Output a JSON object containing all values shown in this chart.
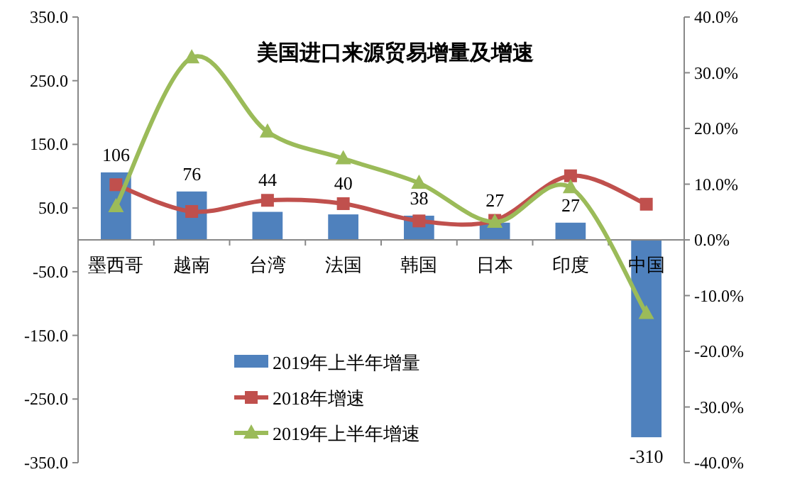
{
  "chart_data": {
    "type": "bar",
    "title": "美国进口来源贸易增量及增速",
    "categories": [
      "墨西哥",
      "越南",
      "台湾",
      "法国",
      "韩国",
      "日本",
      "印度",
      "中国"
    ],
    "series": [
      {
        "name": "2019年上半年增量",
        "color": "#4f81bd",
        "values": [
          106,
          76,
          44,
          40,
          38,
          27,
          27,
          -310
        ],
        "value_labels": [
          "106",
          "76",
          "44",
          "40",
          "38",
          "27",
          "27",
          "-310"
        ]
      },
      {
        "name": "2018年增速",
        "type": "line",
        "axis": "y2",
        "color": "#c0504d",
        "marker": "square",
        "values": [
          9.9,
          5.1,
          7.1,
          6.5,
          3.4,
          3.5,
          11.5,
          6.4
        ]
      },
      {
        "name": "2019年上半年增速",
        "type": "line",
        "axis": "y2",
        "color": "#9bbb59",
        "marker": "triangle",
        "values": [
          6.0,
          32.7,
          19.4,
          14.6,
          10.2,
          3.2,
          9.4,
          -13.2
        ]
      }
    ],
    "ylim": [
      -350,
      350
    ],
    "yticks": [
      {
        "value": 350,
        "label": "350.0"
      },
      {
        "value": 250,
        "label": "250.0"
      },
      {
        "value": 150,
        "label": "150.0"
      },
      {
        "value": 50,
        "label": "50.0"
      },
      {
        "value": -50,
        "label": "-50.0"
      },
      {
        "value": -150,
        "label": "-150.0"
      },
      {
        "value": -250,
        "label": "-250.0"
      },
      {
        "value": -350,
        "label": "-350.0"
      }
    ],
    "y2lim": [
      -40,
      40
    ],
    "y2ticks": [
      {
        "value": 40,
        "label": "40.0%"
      },
      {
        "value": 30,
        "label": "30.0%"
      },
      {
        "value": 20,
        "label": "20.0%"
      },
      {
        "value": 10,
        "label": "10.0%"
      },
      {
        "value": 0,
        "label": "0.0%"
      },
      {
        "value": -10,
        "label": "-10.0%"
      },
      {
        "value": -20,
        "label": "-20.0%"
      },
      {
        "value": -30,
        "label": "-30.0%"
      },
      {
        "value": -40,
        "label": "-40.0%"
      }
    ],
    "legend": "bottom",
    "grid": false
  }
}
